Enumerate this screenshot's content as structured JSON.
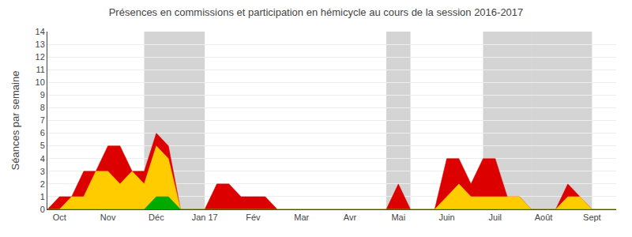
{
  "chart_data": {
    "type": "area",
    "title": "Présences en commissions et participation en hémicycle au cours de la session 2016-2017",
    "ylabel": "Séances par semaine",
    "categories": [
      null,
      "Oct",
      null,
      null,
      null,
      "Nov",
      null,
      null,
      null,
      "Déc",
      null,
      null,
      null,
      "Jan 17",
      null,
      null,
      null,
      "Fév",
      null,
      null,
      null,
      "Mar",
      null,
      null,
      null,
      "Avr",
      null,
      null,
      null,
      "Mai",
      null,
      null,
      null,
      "Juin",
      null,
      null,
      null,
      "Juil",
      null,
      null,
      null,
      "Août",
      null,
      null,
      null,
      "Sept",
      null,
      null
    ],
    "series": [
      {
        "color": "#dd0000",
        "values": [
          0,
          1,
          1,
          3,
          3,
          5,
          5,
          3,
          3,
          6,
          5,
          0,
          0,
          0,
          2,
          2,
          1,
          1,
          1,
          0,
          0,
          0,
          0,
          0,
          0,
          0,
          0,
          0,
          0,
          2,
          0,
          0,
          0,
          4,
          4,
          2,
          4,
          4,
          1,
          1,
          0,
          0,
          0,
          2,
          1,
          0,
          0,
          0
        ]
      },
      {
        "color": "#ffcc00",
        "values": [
          0,
          0,
          1,
          1,
          3,
          3,
          2,
          3,
          2,
          5,
          4,
          0,
          0,
          0,
          0,
          0,
          0,
          0,
          0,
          0,
          0,
          0,
          0,
          0,
          0,
          0,
          0,
          0,
          0,
          0,
          0,
          0,
          0,
          1,
          2,
          1,
          1,
          1,
          1,
          1,
          0,
          0,
          0,
          1,
          1,
          0,
          0,
          0
        ]
      },
      {
        "color": "#00aa00",
        "values": [
          0,
          0,
          0,
          0,
          0,
          0,
          0,
          0,
          0,
          1,
          1,
          0,
          0,
          0,
          0,
          0,
          0,
          0,
          0,
          0,
          0,
          0,
          0,
          0,
          0,
          0,
          0,
          0,
          0,
          0,
          0,
          0,
          0,
          0,
          0,
          0,
          0,
          0,
          0,
          0,
          0,
          0,
          0,
          0,
          0,
          0,
          0,
          0
        ]
      }
    ],
    "shaded_ranges": [
      [
        8,
        13
      ],
      [
        28,
        30
      ],
      [
        36,
        40
      ],
      [
        40,
        45
      ]
    ],
    "stacked": false,
    "ylim": [
      0,
      14
    ],
    "yticks": [
      0,
      1,
      2,
      3,
      4,
      5,
      6,
      7,
      8,
      9,
      10,
      11,
      12,
      13,
      14
    ],
    "grid": true
  }
}
